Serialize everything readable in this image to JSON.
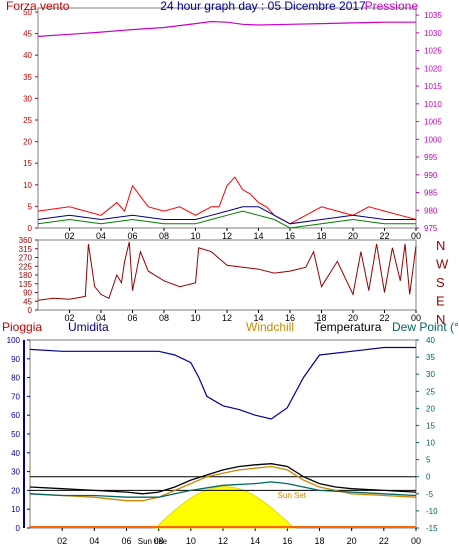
{
  "chart_data": [
    {
      "type": "line",
      "panel": "wind-pressure",
      "title": "24 hour graph day : 05 Dicembre 2017",
      "left_label": "Forza vento",
      "right_label": "Pressione",
      "left_ticks": [
        "0",
        "5",
        "10",
        "15",
        "20",
        "25",
        "30",
        "35",
        "40",
        "45",
        "50"
      ],
      "right_ticks": [
        "975",
        "980",
        "985",
        "990",
        "995",
        "1000",
        "1005",
        "1010",
        "1015",
        "1020",
        "1025",
        "1030",
        "1035"
      ],
      "x_ticks": [
        "02",
        "04",
        "06",
        "08",
        "10",
        "12",
        "14",
        "16",
        "18",
        "20",
        "22",
        "00"
      ],
      "ylim_left": [
        0,
        50
      ],
      "ylim_right": [
        975,
        1037
      ],
      "series": [
        {
          "color": "#cc00cc",
          "x": [
            0,
            2,
            4,
            6,
            8,
            10,
            11,
            12,
            13,
            14,
            16,
            18,
            20,
            22,
            24
          ],
          "y": [
            1029,
            1029.6,
            1030.2,
            1030.9,
            1031.5,
            1032.6,
            1033.2,
            1033,
            1032.4,
            1032.2,
            1032.4,
            1032.6,
            1032.8,
            1033,
            1033
          ]
        },
        {
          "color": "#ff0000",
          "x": [
            0,
            2,
            4,
            5,
            5.5,
            6,
            7,
            8,
            9,
            10,
            11,
            11.5,
            12,
            12.5,
            13,
            13.5,
            14,
            14.5,
            15,
            16,
            17,
            18,
            19,
            20,
            21,
            22,
            23,
            24
          ],
          "y": [
            4,
            5,
            3,
            6,
            4,
            10,
            5,
            4,
            5,
            3,
            5,
            5,
            10,
            12,
            9,
            8,
            6,
            5,
            3,
            1,
            3,
            5,
            4,
            3,
            5,
            4,
            3,
            2
          ]
        },
        {
          "color": "#008000",
          "x": [
            0,
            2,
            4,
            6,
            8,
            10,
            11,
            12,
            13,
            14,
            15,
            16,
            18,
            20,
            22,
            24
          ],
          "y": [
            1,
            2,
            1,
            2,
            1,
            1,
            2,
            3,
            4,
            3,
            2,
            0,
            1,
            2,
            1,
            1
          ]
        },
        {
          "color": "#000080",
          "x": [
            0,
            2,
            4,
            6,
            8,
            10,
            11,
            12,
            13,
            14,
            15,
            16,
            18,
            20,
            22,
            24
          ],
          "y": [
            2,
            3,
            2,
            3,
            2,
            2,
            3,
            4,
            5,
            5,
            3,
            1,
            2,
            3,
            2,
            2
          ]
        }
      ]
    },
    {
      "type": "line",
      "panel": "wind-direction",
      "left_ticks": [
        "0",
        "45",
        "90",
        "135",
        "180",
        "225",
        "270",
        "315",
        "360"
      ],
      "compass_labels": [
        "N",
        "W",
        "S",
        "E",
        "N"
      ],
      "x_ticks": [
        "02",
        "04",
        "06",
        "08",
        "10",
        "12",
        "14",
        "16",
        "18",
        "20",
        "22",
        "00"
      ],
      "ylim": [
        0,
        360
      ],
      "series": [
        {
          "color": "#990000",
          "x": [
            0,
            1,
            2,
            3,
            3.2,
            3.6,
            4,
            4.5,
            5,
            5.3,
            5.5,
            5.8,
            6,
            6.5,
            7,
            8,
            9,
            10,
            10.2,
            11,
            12,
            13,
            14,
            15,
            16,
            17,
            17.5,
            18,
            19,
            20,
            20.5,
            21,
            21.5,
            22,
            22.5,
            23,
            23.3,
            23.6,
            24
          ],
          "y": [
            50,
            60,
            55,
            70,
            340,
            120,
            80,
            60,
            180,
            140,
            250,
            350,
            100,
            300,
            200,
            150,
            120,
            140,
            320,
            300,
            230,
            220,
            210,
            190,
            200,
            220,
            300,
            120,
            250,
            80,
            300,
            100,
            340,
            90,
            320,
            150,
            340,
            80,
            330
          ]
        }
      ]
    },
    {
      "type": "line",
      "panel": "rain-humidity-temp",
      "labels": {
        "rain": "Pioggia",
        "humidity": "Umidita",
        "windchill": "Windchill",
        "temp": "Temperatura",
        "dew": "Dew Point (°C"
      },
      "left_ticks": [
        "0",
        "10",
        "20",
        "30",
        "40",
        "50",
        "60",
        "70",
        "80",
        "90",
        "100"
      ],
      "right_ticks": [
        "-15",
        "-10",
        "-5",
        "0",
        "5",
        "10",
        "15",
        "20",
        "25",
        "30",
        "35",
        "40"
      ],
      "x_ticks": [
        "02",
        "04",
        "06",
        "08",
        "10",
        "12",
        "14",
        "16",
        "18",
        "20",
        "22",
        "00"
      ],
      "ylim_humidity": [
        0,
        100
      ],
      "ylim_temp": [
        -15,
        40
      ],
      "sun_rise": "Sun rise",
      "sun_set": "Sun Set",
      "series": [
        {
          "name": "Umidita",
          "color": "#000099",
          "x": [
            0,
            2,
            4,
            6,
            8,
            9,
            10,
            10.5,
            11,
            12,
            13,
            14,
            15,
            16,
            17,
            18,
            20,
            22,
            24
          ],
          "y": [
            95,
            94,
            94,
            94,
            94,
            92,
            88,
            80,
            70,
            65,
            63,
            60,
            58,
            64,
            80,
            92,
            94,
            96,
            96
          ]
        },
        {
          "name": "Temperatura",
          "color": "#000000",
          "x": [
            0,
            2,
            4,
            6,
            7,
            8,
            9,
            10,
            11,
            12,
            13,
            14,
            15,
            16,
            17,
            18,
            19,
            20,
            22,
            24
          ],
          "y": [
            -3,
            -3.5,
            -4,
            -4.5,
            -5,
            -4.5,
            -3,
            -1,
            0.5,
            2,
            3,
            3.5,
            3.8,
            3,
            0,
            -2,
            -3,
            -3.5,
            -4,
            -4.5
          ]
        },
        {
          "name": "Windchill",
          "color": "#cc8800",
          "x": [
            0,
            2,
            4,
            6,
            7,
            8,
            9,
            10,
            11,
            12,
            13,
            14,
            15,
            16,
            17,
            18,
            19,
            20,
            22,
            24
          ],
          "y": [
            -5,
            -5.5,
            -6,
            -7,
            -7,
            -6,
            -4,
            -2,
            0,
            1,
            2,
            2.5,
            3,
            2,
            -1,
            -3,
            -4,
            -5,
            -5.5,
            -6
          ]
        },
        {
          "name": "Dew Point",
          "color": "#006666",
          "x": [
            0,
            2,
            4,
            6,
            8,
            9,
            10,
            12,
            14,
            15,
            16,
            17,
            18,
            20,
            22,
            24
          ],
          "y": [
            -5,
            -5.5,
            -5.5,
            -6,
            -6,
            -5,
            -4,
            -2.5,
            -2,
            -1.5,
            -2,
            -3,
            -4,
            -4.5,
            -5,
            -5.5
          ]
        }
      ],
      "reference_lines": [
        {
          "color": "#000000",
          "y_temp": 0
        },
        {
          "color": "#000000",
          "y_temp": -4
        }
      ],
      "sun_curve": {
        "color": "#ffff00",
        "rise_hour": 7.8,
        "set_hour": 16.4,
        "peak_humidity_scale": 22
      }
    }
  ]
}
